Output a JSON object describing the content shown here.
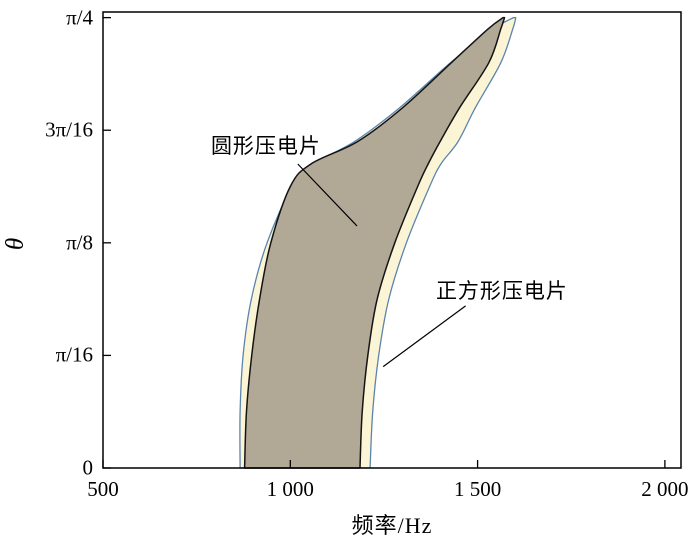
{
  "chart_data": {
    "type": "area",
    "title": "",
    "xlabel": "频率/Hz",
    "ylabel": "θ",
    "grid": false,
    "legend": "none",
    "xlim": [
      500,
      2043
    ],
    "ylim_pi16": [
      0,
      4.05
    ],
    "x_ticks": [
      {
        "value": 500,
        "label": "500"
      },
      {
        "value": 1000,
        "label": "1 000"
      },
      {
        "value": 1500,
        "label": "1 500"
      },
      {
        "value": 2000,
        "label": "2 000"
      }
    ],
    "y_ticks": [
      {
        "value": 0,
        "label": "0"
      },
      {
        "value": 1,
        "label": "π/16"
      },
      {
        "value": 2,
        "label": "π/8"
      },
      {
        "value": 3,
        "label": "3π/16"
      },
      {
        "value": 4,
        "label": "π/4"
      }
    ],
    "theta_grid_pi16": [
      0,
      0.5,
      1,
      1.5,
      2,
      2.5,
      2.7,
      2.9,
      3.2,
      3.6,
      3.9,
      4.0
    ],
    "series": [
      {
        "name": "正方形压电片",
        "shape": "band",
        "fill": "#fbf5d6",
        "stroke": "#5b84ae",
        "stroke_width": 1.3,
        "left_hz": [
          866,
          866,
          874,
          896,
          938,
          1005,
          1062,
          1172,
          1292,
          1428,
          1542,
          1596
        ],
        "right_hz": [
          1213,
          1220,
          1236,
          1263,
          1310,
          1372,
          1402,
          1448,
          1494,
          1562,
          1594,
          1602
        ]
      },
      {
        "name": "圆形压电片",
        "shape": "band",
        "fill": "#b2a896",
        "stroke": "#141414",
        "stroke_width": 1.5,
        "left_hz": [
          878,
          883,
          897,
          918,
          948,
          1000,
          1055,
          1180,
          1300,
          1430,
          1528,
          1568
        ],
        "right_hz": [
          1186,
          1192,
          1207,
          1232,
          1279,
          1340,
          1368,
          1400,
          1452,
          1530,
          1562,
          1572
        ]
      }
    ],
    "annotations": [
      {
        "text": "圆形压电片",
        "text_hz": 935,
        "text_theta_pi16": 2.87,
        "line_hz": [
          1020,
          1178
        ],
        "line_theta_pi16": [
          2.7,
          2.15
        ]
      },
      {
        "text": "正方形压电片",
        "text_hz": 1565,
        "text_theta_pi16": 1.58,
        "line_hz": [
          1468,
          1248
        ],
        "line_theta_pi16": [
          1.44,
          0.9
        ]
      }
    ],
    "axis_color": "#000000",
    "background_color": "#ffffff"
  }
}
